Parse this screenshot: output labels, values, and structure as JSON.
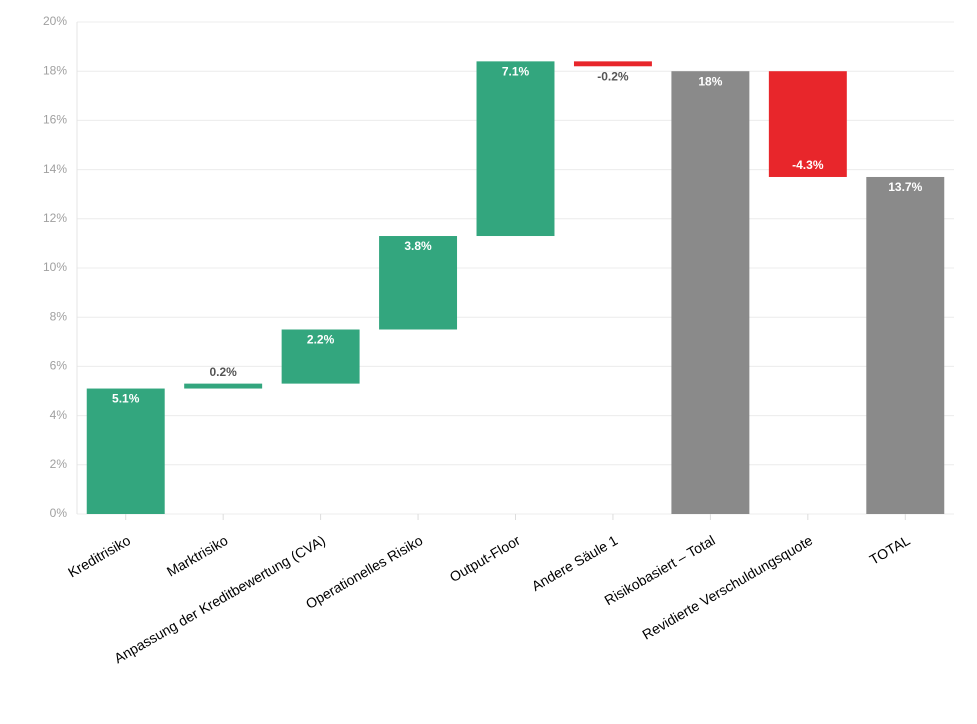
{
  "chart_data": {
    "type": "waterfall",
    "categories": [
      "Kreditrisiko",
      "Marktrisiko",
      "Anpassung der Kreditbewertung (CVA)",
      "Operationelles Risiko",
      "Output-Floor",
      "Andere Säule 1",
      "Risikobasiert – Total",
      "Revidierte Verschuldungsquote",
      "TOTAL"
    ],
    "values": [
      5.1,
      0.2,
      2.2,
      3.8,
      7.1,
      -0.2,
      18,
      -4.3,
      13.7
    ],
    "value_labels": [
      "5.1%",
      "0.2%",
      "2.2%",
      "3.8%",
      "7.1%",
      "-0.2%",
      "18%",
      "-4.3%",
      "13.7%"
    ],
    "is_total": [
      false,
      false,
      false,
      false,
      false,
      false,
      true,
      false,
      true
    ],
    "increase_color": "#33a67e",
    "decrease_color": "#e8262b",
    "total_color": "#8a8a8a",
    "ylim": [
      0,
      20
    ],
    "yticks": [
      {
        "value": 0,
        "label": "0%"
      },
      {
        "value": 2,
        "label": "2%"
      },
      {
        "value": 4,
        "label": "4%"
      },
      {
        "value": 6,
        "label": "6%"
      },
      {
        "value": 8,
        "label": "8%"
      },
      {
        "value": 10,
        "label": "10%"
      },
      {
        "value": 12,
        "label": "12%"
      },
      {
        "value": 14,
        "label": "14%"
      },
      {
        "value": 16,
        "label": "16%"
      },
      {
        "value": 18,
        "label": "18%"
      },
      {
        "value": 20,
        "label": "20%"
      }
    ],
    "grid": true
  }
}
